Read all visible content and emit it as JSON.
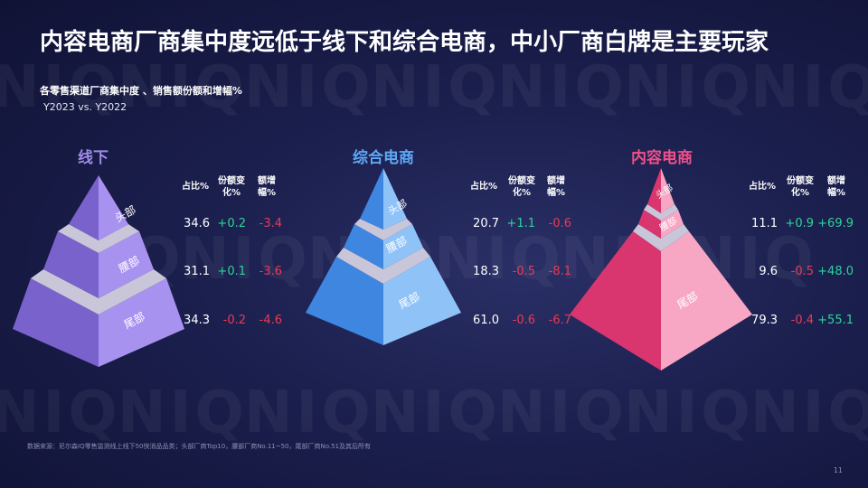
{
  "title": "内容电商厂商集中度远低于线下和综合电商，中小厂商白牌是主要玩家",
  "subtitle": "各零售渠道厂商集中度 、销售额份额和增幅%",
  "period": "Y2023 vs. Y2022",
  "headers": {
    "share": "占比%",
    "share_change": "份额变化%",
    "growth": "额增幅%"
  },
  "tier_labels": {
    "head": "头部",
    "waist": "腰部",
    "tail": "尾部"
  },
  "groups": [
    {
      "name": "线下",
      "color": "#9c86e8",
      "rows": [
        {
          "share": "34.6",
          "share_change": "+0.2",
          "growth": "-3.4"
        },
        {
          "share": "31.1",
          "share_change": "+0.1",
          "growth": "-3.6"
        },
        {
          "share": "34.3",
          "share_change": "-0.2",
          "growth": "-4.6"
        }
      ]
    },
    {
      "name": "综合电商",
      "color": "#5aa0f0",
      "rows": [
        {
          "share": "20.7",
          "share_change": "+1.1",
          "growth": "-0.6"
        },
        {
          "share": "18.3",
          "share_change": "-0.5",
          "growth": "-8.1"
        },
        {
          "share": "61.0",
          "share_change": "-0.6",
          "growth": "-6.7"
        }
      ]
    },
    {
      "name": "内容电商",
      "color": "#e8508a",
      "rows": [
        {
          "share": "11.1",
          "share_change": "+0.9",
          "growth": "+69.9"
        },
        {
          "share": "9.6",
          "share_change": "-0.5",
          "growth": "+48.0"
        },
        {
          "share": "79.3",
          "share_change": "-0.4",
          "growth": "+55.1"
        }
      ]
    }
  ],
  "footer": "数据来源：尼尔森IQ零售监测线上线下50快消品品类；头部厂商Top10，腰部厂商No.11~50，尾部厂商No.51及其后所有",
  "page_number": "11",
  "watermark": "NIQ"
}
